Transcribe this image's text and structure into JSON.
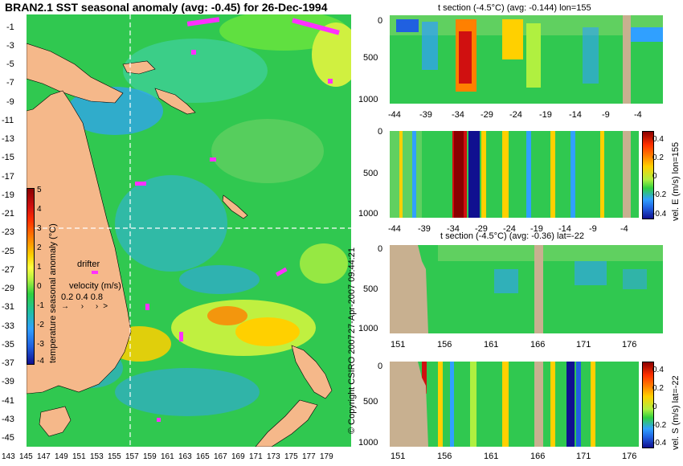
{
  "map": {
    "title": "BRAN2.1 SST seasonal anomaly (avg: -0.45) for 26-Dec-1994",
    "lat_ticks": [
      "-1",
      "-3",
      "-5",
      "-7",
      "-9",
      "-11",
      "-13",
      "-15",
      "-17",
      "-19",
      "-21",
      "-23",
      "-25",
      "-27",
      "-29",
      "-31",
      "-33",
      "-35",
      "-37",
      "-39",
      "-41",
      "-43",
      "-45"
    ],
    "lon_ticks": [
      "143",
      "145",
      "147",
      "149",
      "151",
      "153",
      "155",
      "157",
      "159",
      "161",
      "163",
      "165",
      "167",
      "169",
      "171",
      "173",
      "175",
      "177",
      "179"
    ],
    "colorbar": {
      "label": "temperature seasonal anomaly (°C)",
      "ticks": [
        "5",
        "4",
        "3",
        "2",
        "1",
        "0",
        "-1",
        "-2",
        "-3",
        "-4"
      ],
      "colors": [
        "#8b0000",
        "#d01010",
        "#ff3000",
        "#ff8000",
        "#ffd000",
        "#ffff40",
        "#b0f040",
        "#30d040",
        "#20c0a0",
        "#30a0ff",
        "#2060e0",
        "#101090"
      ]
    },
    "legend": {
      "drifter_label": "drifter",
      "velocity_label": "velocity (m/s)",
      "velocity_ticks": "0.2 0.4 0.8"
    },
    "colors": {
      "land": "#f5b88a",
      "ocean_base": "#30c850",
      "drifter": "#ff30ff"
    }
  },
  "panels": {
    "temp_lon": {
      "title": "t section (-4.5°C) (avg: -0.144) lon=155",
      "y_ticks": [
        "0",
        "500",
        "1000"
      ],
      "x_ticks": [
        "-44",
        "-39",
        "-34",
        "-29",
        "-24",
        "-19",
        "-14",
        "-9",
        "-4"
      ]
    },
    "vel_east": {
      "title": "",
      "y_ticks": [
        "0",
        "500",
        "1000"
      ],
      "x_ticks": [
        "-44",
        "-39",
        "-34",
        "-29",
        "-24",
        "-19",
        "-14",
        "-9",
        "-4"
      ],
      "side_label": "vel. E (m/s) lon=155",
      "cb_ticks": [
        "0.4",
        "0.2",
        "0",
        "-0.2",
        "-0.4"
      ]
    },
    "temp_lat": {
      "title": "t section (-4.5°C) (avg: -0.36) lat=-22",
      "y_ticks": [
        "0",
        "500",
        "1000"
      ],
      "x_ticks": [
        "151",
        "156",
        "161",
        "166",
        "171",
        "176"
      ]
    },
    "vel_south": {
      "title": "",
      "y_ticks": [
        "0",
        "500",
        "1000"
      ],
      "x_ticks": [
        "151",
        "156",
        "161",
        "166",
        "171",
        "176"
      ],
      "side_label": "vel. S (m/s) lat=-22",
      "cb_ticks": [
        "0.4",
        "0.2",
        "0",
        "-0.2",
        "-0.4"
      ]
    }
  },
  "copyright": "© Copyright CSIRO 2007",
  "timestamp": "27-Apr-2007 09:44:21"
}
